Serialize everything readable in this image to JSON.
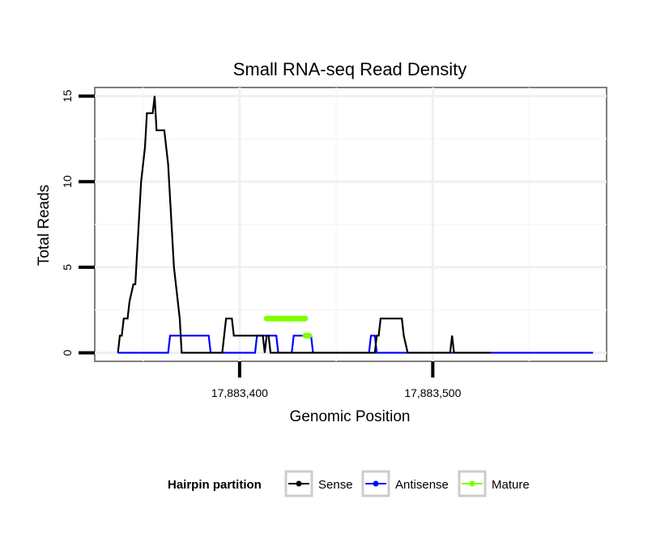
{
  "chart_data": {
    "type": "line",
    "title": "Small RNA-seq Read Density",
    "xlabel": "Genomic Position",
    "ylabel": "Total Reads",
    "xlim": [
      17883325,
      17883590
    ],
    "ylim": [
      -0.5,
      15.5
    ],
    "x_ticks": [
      {
        "value": 17883400,
        "label": "17,883,400"
      },
      {
        "value": 17883500,
        "label": "17,883,500"
      }
    ],
    "y_ticks": [
      {
        "value": 0,
        "label": "0"
      },
      {
        "value": 5,
        "label": "5"
      },
      {
        "value": 10,
        "label": "10"
      },
      {
        "value": 15,
        "label": "15"
      }
    ],
    "grid": true,
    "legend": {
      "title": "Hairpin partition",
      "position": "bottom",
      "entries": [
        {
          "name": "Sense",
          "color": "#000000"
        },
        {
          "name": "Antisense",
          "color": "#0000ff"
        },
        {
          "name": "Mature",
          "color": "#7fff00"
        }
      ]
    },
    "series": [
      {
        "name": "Sense",
        "color": "#000000",
        "x": [
          17883337,
          17883338,
          17883339,
          17883340,
          17883342,
          17883343,
          17883345,
          17883346,
          17883347,
          17883348,
          17883349,
          17883350,
          17883351,
          17883352,
          17883353,
          17883354,
          17883355,
          17883356,
          17883357,
          17883361,
          17883362,
          17883363,
          17883364,
          17883365,
          17883366,
          17883367,
          17883368,
          17883369,
          17883370,
          17883374,
          17883375,
          17883376,
          17883391,
          17883392,
          17883393,
          17883396,
          17883397,
          17883412,
          17883413,
          17883414,
          17883415,
          17883416,
          17883430,
          17883431,
          17883470,
          17883471,
          17883472,
          17883473,
          17883475,
          17883484,
          17883485,
          17883487,
          17883508,
          17883509,
          17883510,
          17883511,
          17883512,
          17883513,
          17883514,
          17883515,
          17883517,
          17883518,
          17883519,
          17883520,
          17883521,
          17883523,
          17883525,
          17883526,
          17883530
        ],
        "y": [
          0,
          1,
          1,
          2,
          2,
          3,
          4,
          4,
          6,
          8,
          10,
          11,
          12,
          14,
          14,
          14,
          14,
          15,
          13,
          13,
          12,
          11,
          9,
          7,
          5,
          4,
          3,
          2,
          0,
          0,
          0,
          0,
          0,
          1,
          2,
          2,
          1,
          1,
          0,
          1,
          1,
          0,
          0,
          0,
          0,
          1,
          1,
          2,
          2,
          2,
          1,
          0,
          0,
          0,
          1,
          0,
          0,
          0,
          0,
          0,
          0,
          0,
          0,
          0,
          0,
          0,
          0,
          0,
          0
        ]
      },
      {
        "name": "Antisense",
        "color": "#0000ff",
        "x": [
          17883337,
          17883363,
          17883364,
          17883384,
          17883385,
          17883408,
          17883409,
          17883419,
          17883420,
          17883427,
          17883428,
          17883437,
          17883438,
          17883467,
          17883468,
          17883470,
          17883471,
          17883478,
          17883479,
          17883583
        ],
        "y": [
          0,
          0,
          1,
          1,
          0,
          0,
          1,
          1,
          0,
          0,
          1,
          1,
          0,
          0,
          1,
          1,
          0,
          0,
          0,
          0
        ]
      }
    ],
    "mature_segments": [
      {
        "x_start": 17883414,
        "x_end": 17883434,
        "y": 2
      },
      {
        "x_start": 17883434,
        "x_end": 17883436,
        "y": 1
      }
    ]
  }
}
